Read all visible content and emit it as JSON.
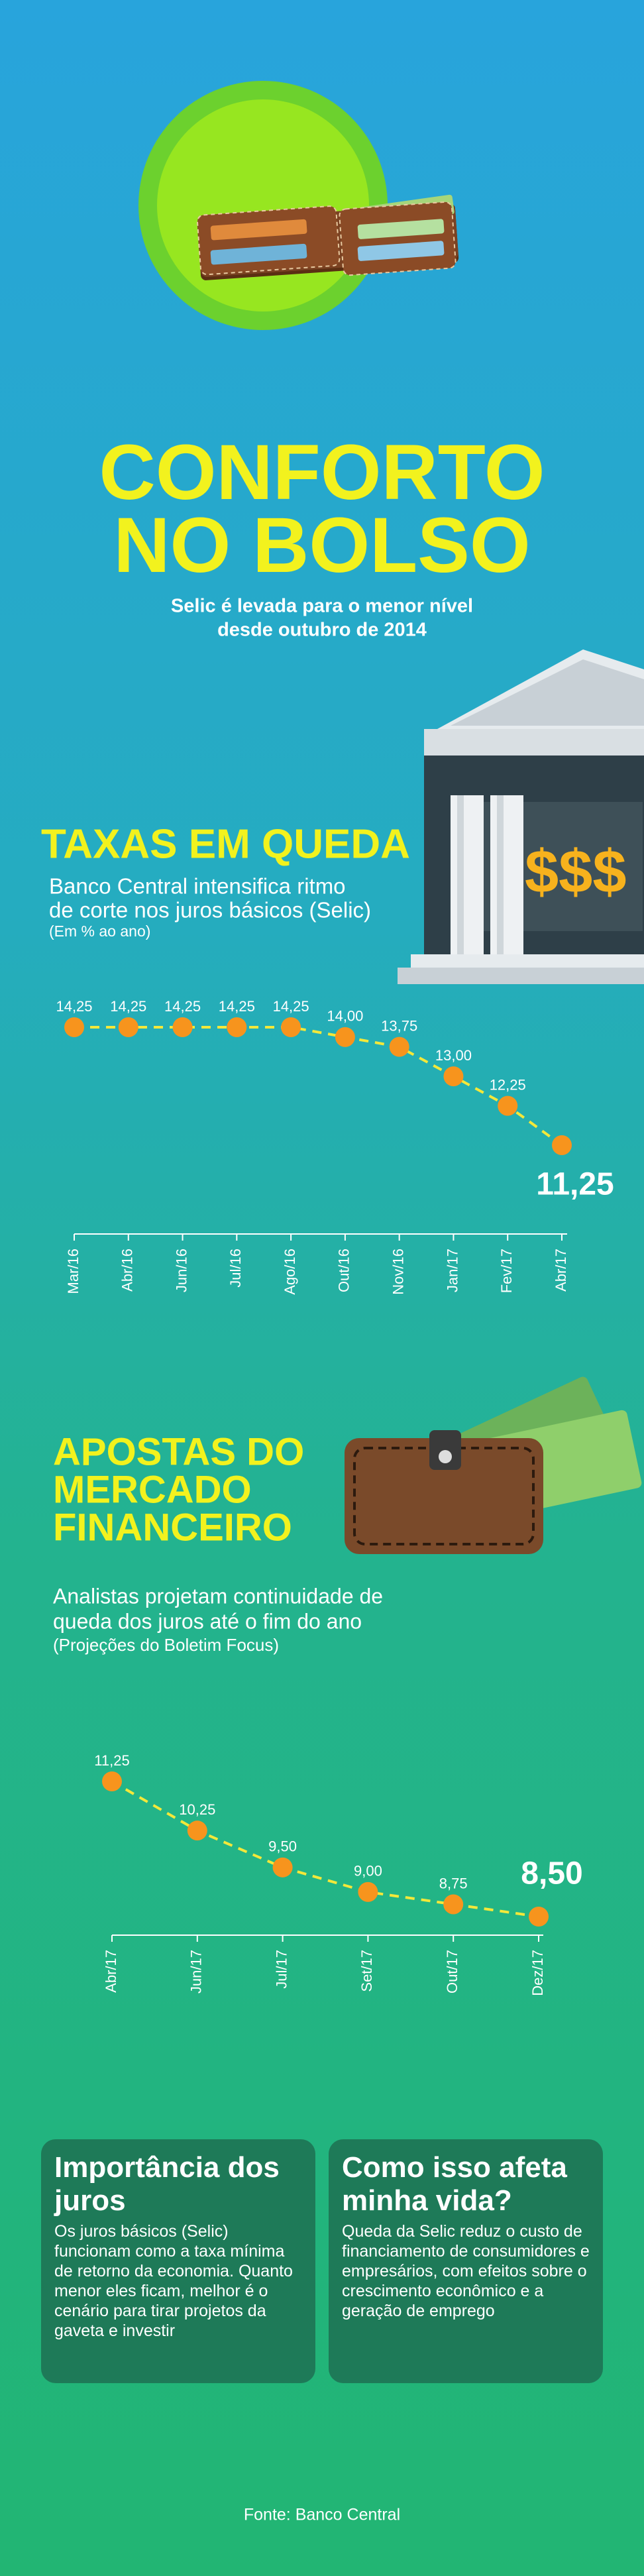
{
  "header": {
    "title_line1": "CONFORTO",
    "title_line2": "NO BOLSO",
    "subtitle_line1": "Selic é levada para o menor nível",
    "subtitle_line2": "desde outubro de 2014"
  },
  "bank_sign": "$$$",
  "chart_data": [
    {
      "type": "line",
      "title": "TAXAS EM QUEDA",
      "subtitle_line1": "Banco Central intensifica ritmo",
      "subtitle_line2": "de corte nos juros básicos (Selic)",
      "note": "(Em % ao ano)",
      "categories": [
        "Mar/16",
        "Abr/16",
        "Jun/16",
        "Jul/16",
        "Ago/16",
        "Out/16",
        "Nov/16",
        "Jan/17",
        "Fev/17",
        "Abr/17"
      ],
      "values": [
        14.25,
        14.25,
        14.25,
        14.25,
        14.25,
        14.0,
        13.75,
        13.0,
        12.25,
        11.25
      ],
      "value_labels": [
        "14,25",
        "14,25",
        "14,25",
        "14,25",
        "14,25",
        "14,00",
        "13,75",
        "13,00",
        "12,25",
        "11,25"
      ],
      "color": "#f7941d",
      "line_color": "#f3e83a"
    },
    {
      "type": "line",
      "title_line1": "APOSTAS DO",
      "title_line2": "MERCADO",
      "title_line3": "FINANCEIRO",
      "subtitle_line1": "Analistas projetam continuidade de",
      "subtitle_line2": "queda dos juros até o fim do ano",
      "note": "(Projeções do Boletim Focus)",
      "categories": [
        "Abr/17",
        "Jun/17",
        "Jul/17",
        "Set/17",
        "Out/17",
        "Dez/17"
      ],
      "values": [
        11.25,
        10.25,
        9.5,
        9.0,
        8.75,
        8.5
      ],
      "value_labels": [
        "11,25",
        "10,25",
        "9,50",
        "9,00",
        "8,75",
        "8,50"
      ],
      "color": "#f7941d",
      "line_color": "#f3e83a"
    }
  ],
  "boxes": [
    {
      "title": "Importância dos juros",
      "text": "Os juros básicos (Selic) funcionam como a taxa mínima de retorno da economia. Quanto menor eles ficam, melhor é o cenário para tirar projetos da gaveta e investir"
    },
    {
      "title": "Como isso afeta minha vida?",
      "text": "Queda da Selic reduz o custo de financiamento de consumidores e empresários, com efeitos sobre o crescimento econômico e a geração de emprego"
    }
  ],
  "source": "Fonte: Banco Central"
}
